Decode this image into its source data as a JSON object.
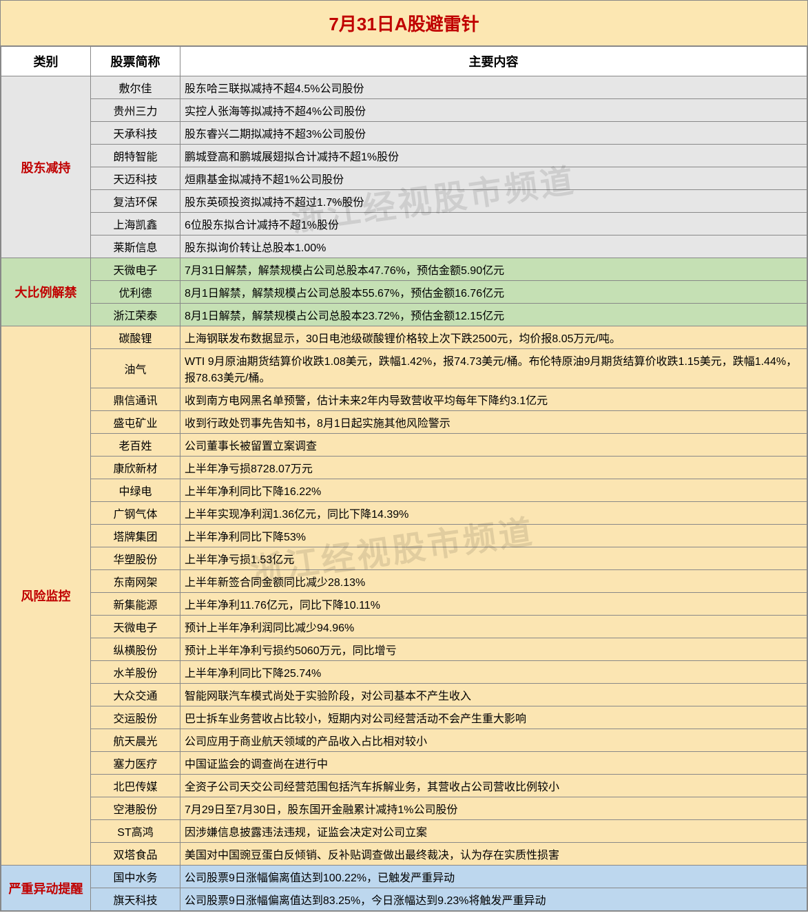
{
  "title": "7月31日A股避雷针",
  "watermark": "浙江经视股市频道",
  "columns": [
    "类别",
    "股票简称",
    "主要内容"
  ],
  "colors": {
    "title_bg": "#fce7b2",
    "title_text": "#c00000",
    "gray": "#e6e6e6",
    "green": "#c5e0b4",
    "orange": "#fbe5b2",
    "blue": "#bdd7ee",
    "border": "#888888"
  },
  "sections": [
    {
      "category": "股东减持",
      "bg": "gray",
      "rows": [
        {
          "stock": "敷尔佳",
          "content": "股东哈三联拟减持不超4.5%公司股份"
        },
        {
          "stock": "贵州三力",
          "content": "实控人张海等拟减持不超4%公司股份"
        },
        {
          "stock": "天承科技",
          "content": "股东睿兴二期拟减持不超3%公司股份"
        },
        {
          "stock": "朗特智能",
          "content": "鹏城登高和鹏城展翅拟合计减持不超1%股份"
        },
        {
          "stock": "天迈科技",
          "content": "烜鼎基金拟减持不超1%公司股份"
        },
        {
          "stock": "复洁环保",
          "content": "股东英硕投资拟减持不超过1.7%股份"
        },
        {
          "stock": "上海凯鑫",
          "content": "6位股东拟合计减持不超1%股份"
        },
        {
          "stock": "莱斯信息",
          "content": "股东拟询价转让总股本1.00%"
        }
      ]
    },
    {
      "category": "大比例解禁",
      "bg": "green",
      "rows": [
        {
          "stock": "天微电子",
          "content": "7月31日解禁，解禁规模占公司总股本47.76%，预估金额5.90亿元"
        },
        {
          "stock": "优利德",
          "content": "8月1日解禁，解禁规模占公司总股本55.67%，预估金额16.76亿元"
        },
        {
          "stock": "浙江荣泰",
          "content": "8月1日解禁，解禁规模占公司总股本23.72%，预估金额12.15亿元"
        }
      ]
    },
    {
      "category": "风险监控",
      "bg": "orange",
      "rows": [
        {
          "stock": "碳酸锂",
          "content": "上海钢联发布数据显示，30日电池级碳酸锂价格较上次下跌2500元，均价报8.05万元/吨。"
        },
        {
          "stock": "油气",
          "content": "WTI 9月原油期货结算价收跌1.08美元，跌幅1.42%，报74.73美元/桶。布伦特原油9月期货结算价收跌1.15美元，跌幅1.44%，报78.63美元/桶。"
        },
        {
          "stock": "鼎信通讯",
          "content": "收到南方电网黑名单预警，估计未来2年内导致营收平均每年下降约3.1亿元"
        },
        {
          "stock": "盛屯矿业",
          "content": "收到行政处罚事先告知书，8月1日起实施其他风险警示"
        },
        {
          "stock": "老百姓",
          "content": "公司董事长被留置立案调查"
        },
        {
          "stock": "康欣新材",
          "content": "上半年净亏损8728.07万元"
        },
        {
          "stock": "中绿电",
          "content": "上半年净利同比下降16.22%"
        },
        {
          "stock": "广钢气体",
          "content": "上半年实现净利润1.36亿元，同比下降14.39%"
        },
        {
          "stock": "塔牌集团",
          "content": "上半年净利同比下降53%"
        },
        {
          "stock": "华塑股份",
          "content": "上半年净亏损1.53亿元"
        },
        {
          "stock": "东南网架",
          "content": "上半年新签合同金额同比减少28.13%"
        },
        {
          "stock": "新集能源",
          "content": "上半年净利11.76亿元，同比下降10.11%"
        },
        {
          "stock": "天微电子",
          "content": "预计上半年净利润同比减少94.96%"
        },
        {
          "stock": "纵横股份",
          "content": "预计上半年净利亏损约5060万元，同比增亏"
        },
        {
          "stock": "水羊股份",
          "content": "上半年净利同比下降25.74%"
        },
        {
          "stock": "大众交通",
          "content": "智能网联汽车模式尚处于实验阶段，对公司基本不产生收入"
        },
        {
          "stock": "交运股份",
          "content": "巴士拆车业务营收占比较小，短期内对公司经营活动不会产生重大影响"
        },
        {
          "stock": "航天晨光",
          "content": "公司应用于商业航天领域的产品收入占比相对较小"
        },
        {
          "stock": "塞力医疗",
          "content": "中国证监会的调查尚在进行中"
        },
        {
          "stock": "北巴传媒",
          "content": "全资子公司天交公司经营范围包括汽车拆解业务，其营收占公司营收比例较小"
        },
        {
          "stock": "空港股份",
          "content": "7月29日至7月30日，股东国开金融累计减持1%公司股份"
        },
        {
          "stock": "ST高鸿",
          "content": "因涉嫌信息披露违法违规，证监会决定对公司立案"
        },
        {
          "stock": "双塔食品",
          "content": "美国对中国豌豆蛋白反倾销、反补贴调查做出最终裁决，认为存在实质性损害"
        }
      ]
    },
    {
      "category": "严重异动提醒",
      "bg": "blue",
      "rows": [
        {
          "stock": "国中水务",
          "content": "公司股票9日涨幅偏离值达到100.22%，已触发严重异动"
        },
        {
          "stock": "旗天科技",
          "content": "公司股票9日涨幅偏离值达到83.25%，今日涨幅达到9.23%将触发严重异动"
        }
      ]
    }
  ]
}
